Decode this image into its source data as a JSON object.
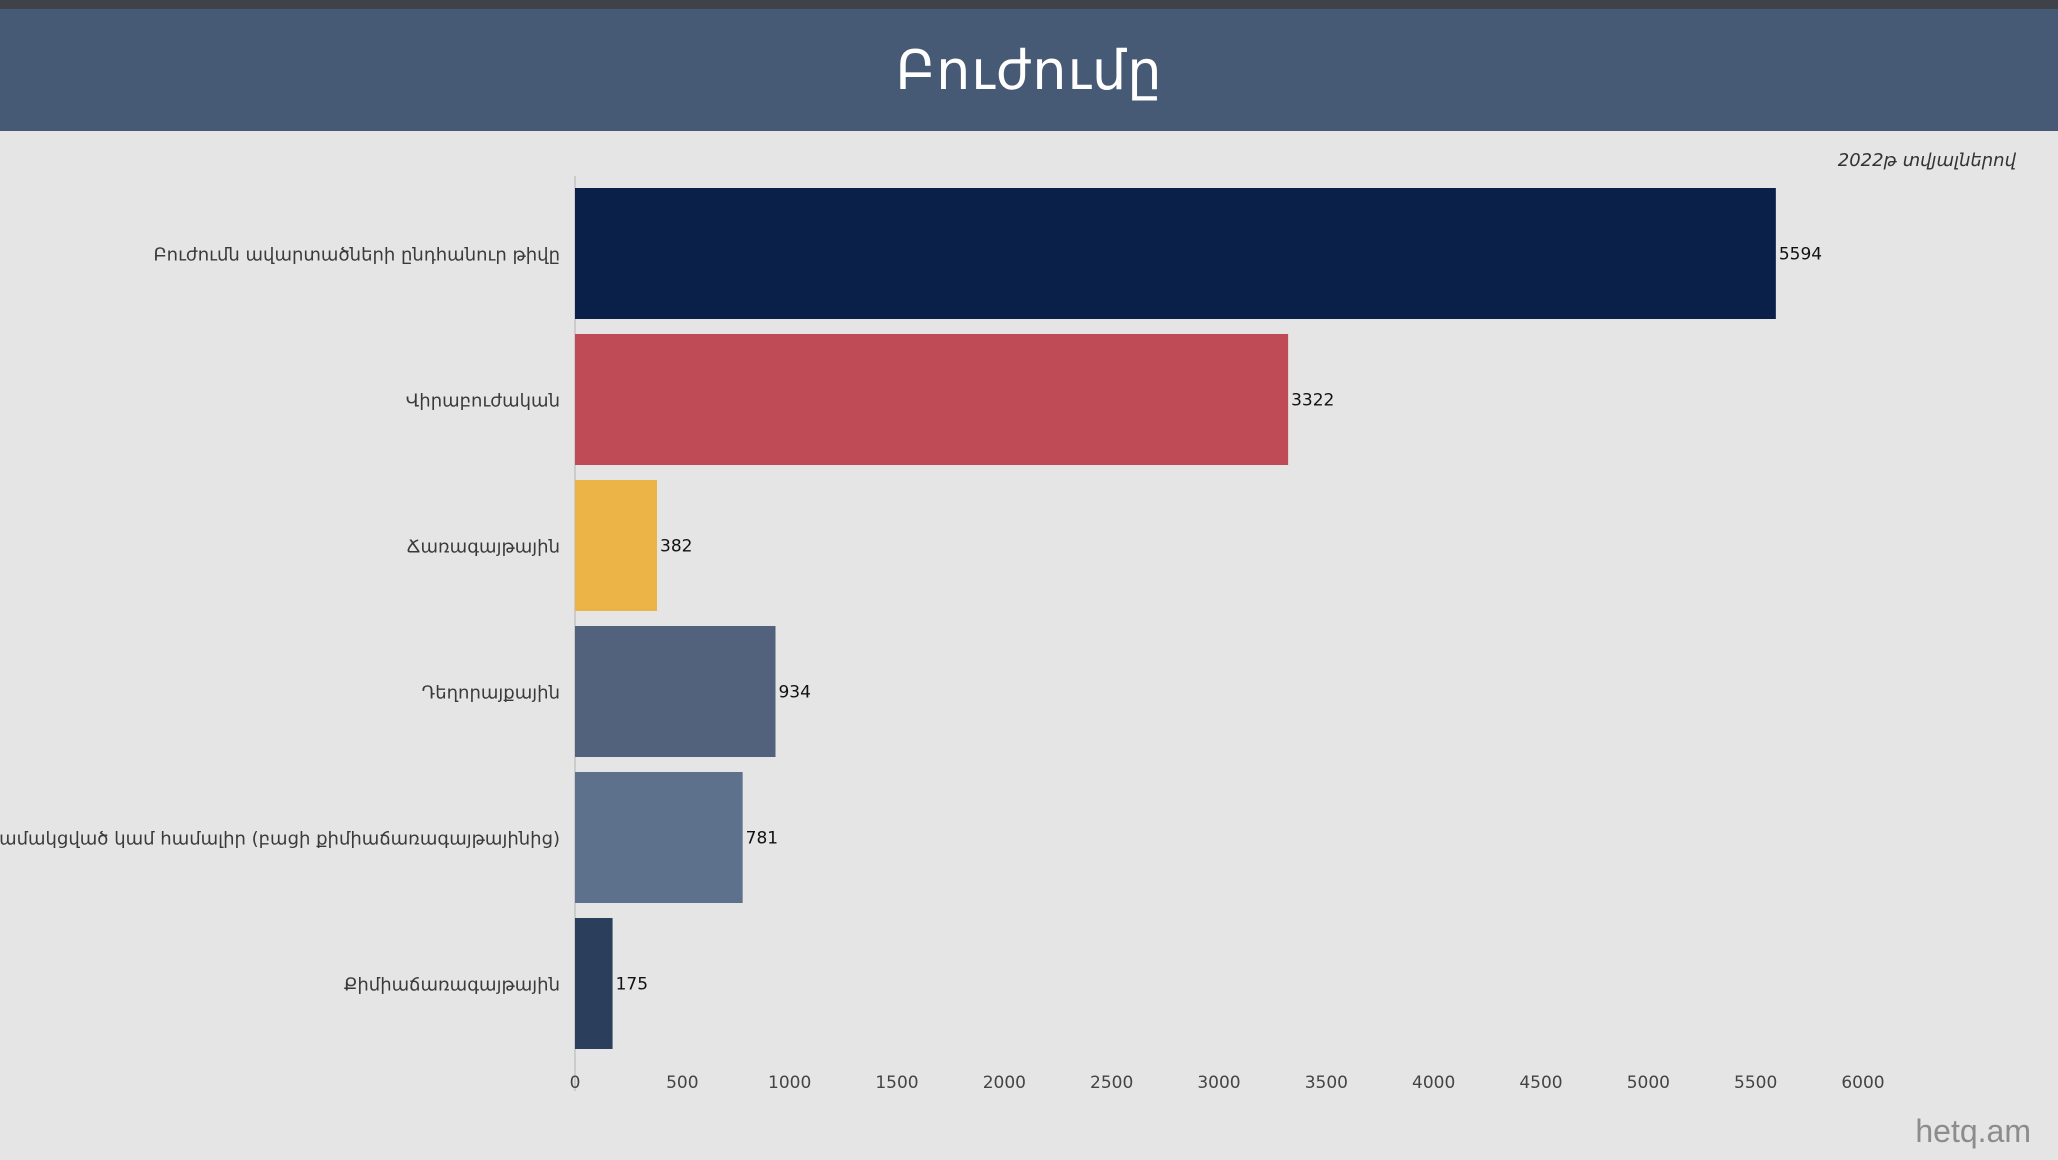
{
  "header": {
    "title": "Բուժումը"
  },
  "subtitle": "2022թ տվյալներով",
  "watermark": "hetq.am",
  "colors": {
    "header_bg": "#475a75",
    "page_bg": "#e5e5e5"
  },
  "chart_data": {
    "type": "bar",
    "orientation": "horizontal",
    "categories": [
      "Բուժումն ավարտածների ընդհանուր թիվը",
      "Վիրաբուժական",
      "Ճառագայթային",
      "Դեղորայքային",
      "Համակցված կամ համալիր (բացի քիմիաճառագայթայինից)",
      "Քիմիաճառագայթային"
    ],
    "values": [
      5594,
      3322,
      382,
      934,
      781,
      175
    ],
    "data_labels": [
      "5594",
      "3322",
      "382",
      "934",
      "781",
      "175"
    ],
    "bar_colors": [
      "#0a2048",
      "#bf4b57",
      "#ecb446",
      "#52627c",
      "#5d718c",
      "#2b3e5c"
    ],
    "xlim": [
      0,
      6000
    ],
    "xticks": [
      0,
      500,
      1000,
      1500,
      2000,
      2500,
      3000,
      3500,
      4000,
      4500,
      5000,
      5500,
      6000
    ],
    "grid": false,
    "legend": "none"
  }
}
